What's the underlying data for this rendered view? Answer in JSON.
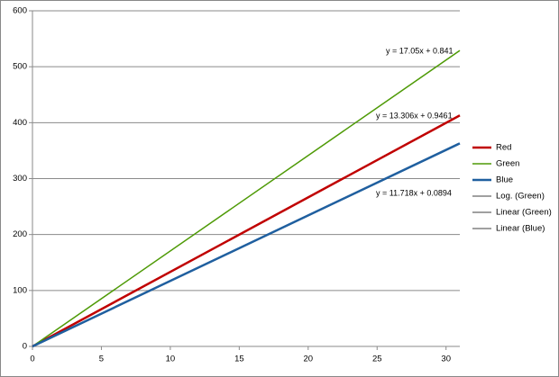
{
  "chart_data": {
    "type": "line",
    "x": [
      0,
      31
    ],
    "series": [
      {
        "name": "Red",
        "color": "#c00000",
        "values": [
          0,
          413
        ]
      },
      {
        "name": "Green",
        "color": "#4e9a06",
        "values": [
          0,
          529
        ]
      },
      {
        "name": "Blue",
        "color": "#1f5f9f",
        "values": [
          0,
          363
        ]
      }
    ],
    "trendlines": [
      {
        "name": "Log. (Green)",
        "color": "#000000"
      },
      {
        "name": "Linear (Green)",
        "color": "#000000"
      },
      {
        "name": "Linear (Blue)",
        "color": "#000000"
      }
    ],
    "annotations": [
      "y = 17.05x + 0.841",
      "y = 13.306x + 0.9461",
      "y = 11.718x + 0.0894"
    ],
    "xlim": [
      0,
      31
    ],
    "xticks": [
      0,
      5,
      10,
      15,
      20,
      25,
      30
    ],
    "ylim": [
      0,
      600
    ],
    "yticks": [
      0,
      100,
      200,
      300,
      400,
      500,
      600
    ],
    "grid": true,
    "legend": "right"
  }
}
